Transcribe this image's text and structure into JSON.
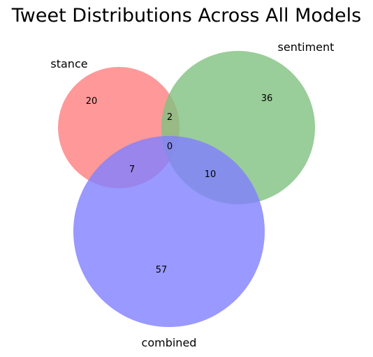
{
  "title": "Tweet Distributions Across All Models",
  "sets": [
    {
      "name": "stance",
      "color": "#ff8080"
    },
    {
      "name": "sentiment",
      "color": "#80c080"
    },
    {
      "name": "combined",
      "color": "#8080ff"
    }
  ],
  "chart_data": {
    "type": "venn",
    "title": "Tweet Distributions Across All Models",
    "set_labels": [
      "stance",
      "sentiment",
      "combined"
    ],
    "regions": [
      {
        "sets": [
          "stance"
        ],
        "value": 20
      },
      {
        "sets": [
          "sentiment"
        ],
        "value": 36
      },
      {
        "sets": [
          "combined"
        ],
        "value": 57
      },
      {
        "sets": [
          "stance",
          "sentiment"
        ],
        "value": 2
      },
      {
        "sets": [
          "stance",
          "combined"
        ],
        "value": 7
      },
      {
        "sets": [
          "sentiment",
          "combined"
        ],
        "value": 10
      },
      {
        "sets": [
          "stance",
          "sentiment",
          "combined"
        ],
        "value": 0
      }
    ]
  }
}
